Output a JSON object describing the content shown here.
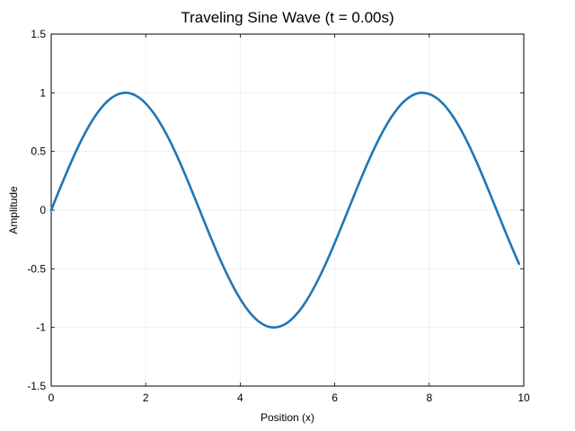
{
  "chart_data": {
    "type": "line",
    "title": "Traveling Sine Wave (t = 0.00s)",
    "xlabel": "Position (x)",
    "ylabel": "Amplitude",
    "xlim": [
      0,
      10
    ],
    "ylim": [
      -1.5,
      1.5
    ],
    "xticks": [
      0,
      2,
      4,
      6,
      8,
      10
    ],
    "xtick_labels": [
      "0",
      "2",
      "4",
      "6",
      "8",
      "10"
    ],
    "yticks": [
      -1.5,
      -1,
      -0.5,
      0,
      0.5,
      1,
      1.5
    ],
    "ytick_labels": [
      "-1.5",
      "-1",
      "-0.5",
      "0",
      "0.5",
      "1",
      "1.5"
    ],
    "grid": true,
    "series": [
      {
        "color": "#1f77b4",
        "x": [
          0,
          0.2,
          0.4,
          0.6,
          0.8,
          1.0,
          1.2,
          1.4,
          1.6,
          1.8,
          2.0,
          2.2,
          2.4,
          2.6,
          2.8,
          3.0,
          3.2,
          3.4,
          3.6,
          3.8,
          4.0,
          4.2,
          4.4,
          4.6,
          4.8,
          5.0,
          5.2,
          5.4,
          5.6,
          5.8,
          6.0,
          6.2,
          6.4,
          6.6,
          6.8,
          7.0,
          7.2,
          7.4,
          7.6,
          7.8,
          8.0,
          8.2,
          8.4,
          8.6,
          8.8,
          9.0,
          9.2,
          9.4,
          9.6,
          9.8,
          9.9
        ],
        "y": [
          0,
          0.199,
          0.389,
          0.565,
          0.717,
          0.841,
          0.932,
          0.985,
          1.0,
          0.974,
          0.909,
          0.808,
          0.675,
          0.516,
          0.335,
          0.141,
          -0.058,
          -0.256,
          -0.443,
          -0.612,
          -0.757,
          -0.872,
          -0.952,
          -0.994,
          -0.996,
          -0.959,
          -0.883,
          -0.773,
          -0.631,
          -0.465,
          -0.279,
          -0.083,
          0.117,
          0.312,
          0.494,
          0.657,
          0.794,
          0.899,
          0.968,
          0.999,
          0.989,
          0.941,
          0.855,
          0.735,
          0.585,
          0.412,
          0.223,
          0.025,
          -0.174,
          -0.366,
          -0.458
        ]
      }
    ]
  }
}
